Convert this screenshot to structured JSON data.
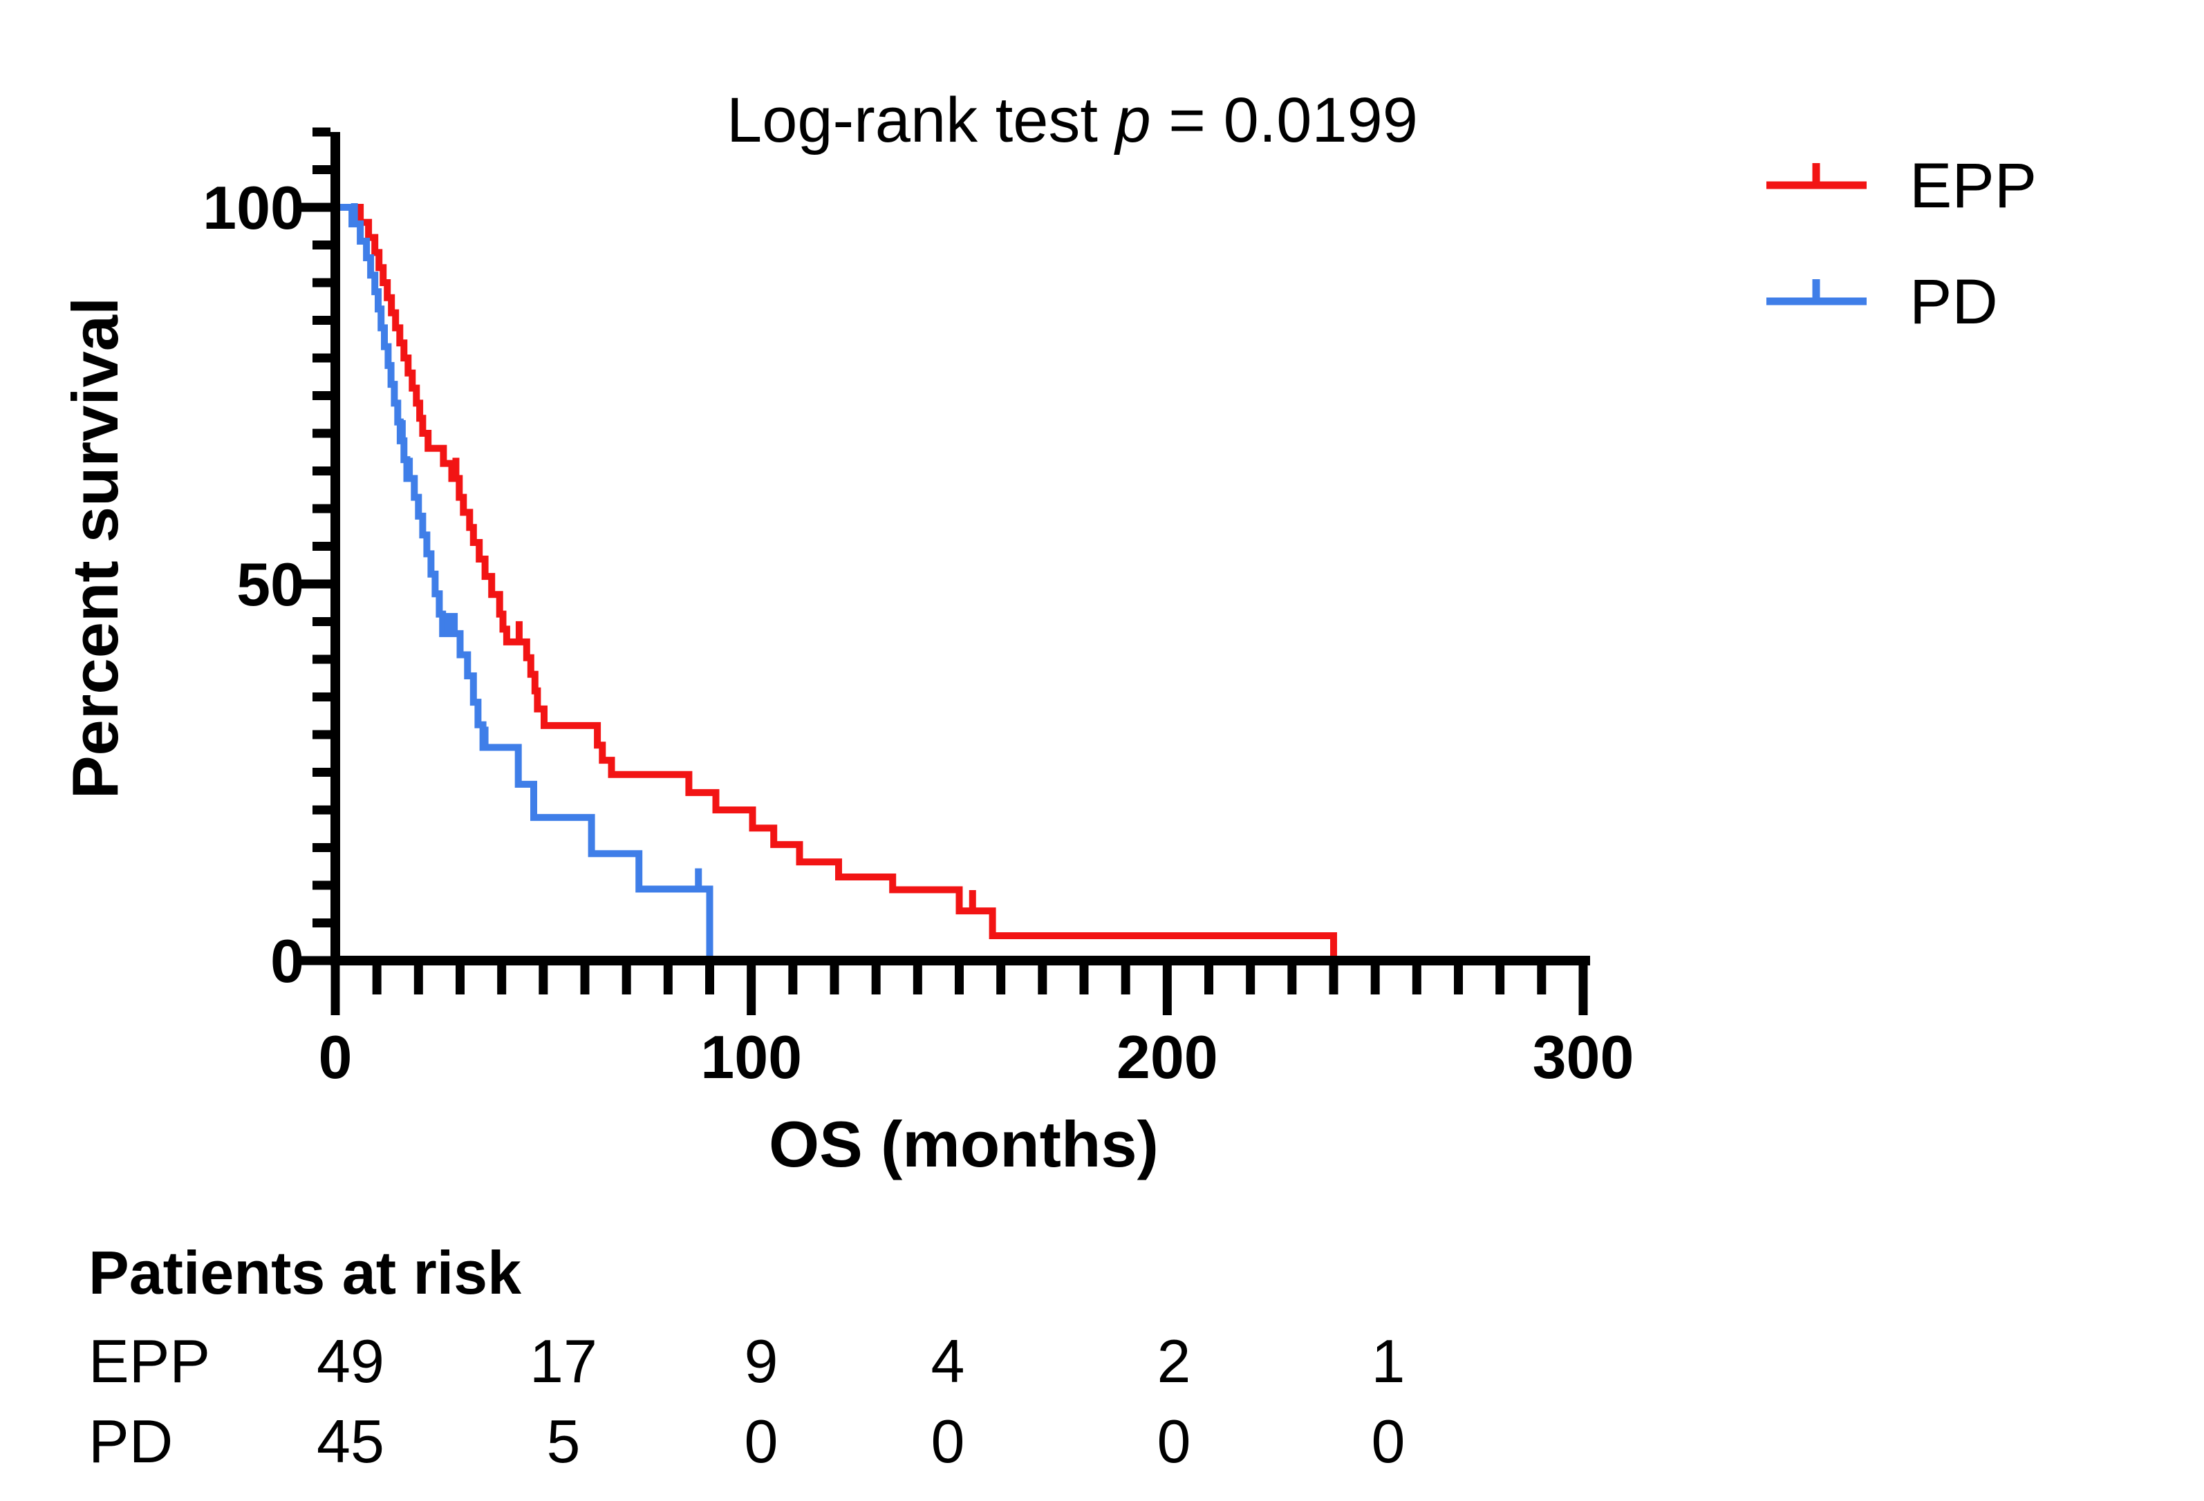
{
  "title": {
    "prefix": "Log-rank test ",
    "p": "p",
    "suffix": " = 0.0199"
  },
  "y_axis": {
    "label": "Percent survival",
    "major_ticks": [
      0,
      50,
      100
    ],
    "minor_step": 5,
    "axis_max": 110,
    "range": [
      0,
      100
    ]
  },
  "x_axis": {
    "label": "OS (months)",
    "major_ticks": [
      0,
      100,
      200,
      300
    ],
    "minor_step": 10,
    "range": [
      0,
      300
    ]
  },
  "legend": [
    {
      "label": "EPP",
      "color": "#f21414"
    },
    {
      "label": "PD",
      "color": "#3f7ee8"
    }
  ],
  "chart_data": {
    "type": "line",
    "subtype": "kaplan-meier-step",
    "title": "Log-rank test p = 0.0199",
    "xlabel": "OS (months)",
    "ylabel": "Percent survival",
    "xlim": [
      0,
      300
    ],
    "ylim": [
      0,
      100
    ],
    "grid": false,
    "legend_position": "top-right",
    "series": [
      {
        "name": "EPP",
        "color": "#f21414",
        "steps": [
          [
            0,
            100
          ],
          [
            6,
            98
          ],
          [
            8,
            96
          ],
          [
            9.5,
            94
          ],
          [
            10.5,
            92
          ],
          [
            11.5,
            90
          ],
          [
            12.5,
            88
          ],
          [
            13.5,
            86
          ],
          [
            14.5,
            84
          ],
          [
            15.5,
            82
          ],
          [
            16.5,
            80
          ],
          [
            17.5,
            78
          ],
          [
            18.5,
            76
          ],
          [
            19.5,
            74
          ],
          [
            20.3,
            72
          ],
          [
            21,
            70
          ],
          [
            22.3,
            68
          ],
          [
            26,
            66
          ],
          [
            28,
            64
          ],
          [
            29.8,
            61.5
          ],
          [
            30.8,
            59.5
          ],
          [
            32.3,
            57.5
          ],
          [
            33.2,
            55.5
          ],
          [
            34.6,
            53.3
          ],
          [
            36,
            51
          ],
          [
            37.6,
            48.6
          ],
          [
            39.5,
            46
          ],
          [
            40.3,
            44
          ],
          [
            41.2,
            42.3
          ],
          [
            46,
            40.2
          ],
          [
            47,
            38
          ],
          [
            48,
            35.8
          ],
          [
            48.6,
            33.4
          ],
          [
            50.2,
            31.2
          ],
          [
            63,
            28.6
          ],
          [
            64.2,
            26.6
          ],
          [
            66.4,
            24.7
          ],
          [
            85,
            22.3
          ],
          [
            91.5,
            20
          ],
          [
            100.3,
            17.6
          ],
          [
            105.4,
            15.4
          ],
          [
            111.6,
            13.1
          ],
          [
            121,
            11.1
          ],
          [
            134,
            9.4
          ],
          [
            150,
            6.6
          ],
          [
            158,
            3.3
          ],
          [
            240,
            0
          ]
        ],
        "censor_marks": [
          [
            29,
            64
          ],
          [
            44.2,
            42.3
          ],
          [
            153.2,
            6.6
          ]
        ]
      },
      {
        "name": "PD",
        "color": "#3f7ee8",
        "steps": [
          [
            0,
            100
          ],
          [
            4,
            97.8
          ],
          [
            6,
            95.5
          ],
          [
            7.5,
            93.3
          ],
          [
            8.5,
            91
          ],
          [
            9.5,
            88.8
          ],
          [
            10.3,
            86.5
          ],
          [
            11,
            84
          ],
          [
            11.8,
            81.5
          ],
          [
            12.7,
            79
          ],
          [
            13.4,
            76.5
          ],
          [
            14.2,
            74
          ],
          [
            15,
            71.5
          ],
          [
            15.6,
            69
          ],
          [
            16.5,
            66.5
          ],
          [
            17.2,
            64
          ],
          [
            19,
            61.5
          ],
          [
            20,
            59
          ],
          [
            21,
            56.5
          ],
          [
            22,
            54
          ],
          [
            23,
            51.3
          ],
          [
            24,
            48.7
          ],
          [
            25,
            46
          ],
          [
            25.8,
            43.4
          ],
          [
            30,
            40.6
          ],
          [
            31.8,
            37.8
          ],
          [
            33.2,
            34.3
          ],
          [
            34.3,
            31.3
          ],
          [
            35.5,
            28.3
          ],
          [
            44,
            23.4
          ],
          [
            47.7,
            19
          ],
          [
            61.6,
            14.2
          ],
          [
            73,
            9.5
          ],
          [
            90,
            0
          ]
        ],
        "censor_marks": [
          [
            4.6,
            97.8
          ],
          [
            16.1,
            69
          ],
          [
            17.8,
            64
          ],
          [
            27,
            43.4
          ],
          [
            28.6,
            43.4
          ],
          [
            36,
            28.3
          ],
          [
            87.3,
            9.5
          ]
        ]
      }
    ]
  },
  "risk_table": {
    "title": "Patients at risk",
    "timepoints": [
      0,
      50,
      100,
      150,
      200,
      250
    ],
    "rows": [
      {
        "label": "EPP",
        "counts": [
          "49",
          "17",
          "9",
          "4",
          "2",
          "1"
        ]
      },
      {
        "label": "PD",
        "counts": [
          "45",
          "5",
          "0",
          "0",
          "0",
          "0"
        ]
      }
    ]
  }
}
